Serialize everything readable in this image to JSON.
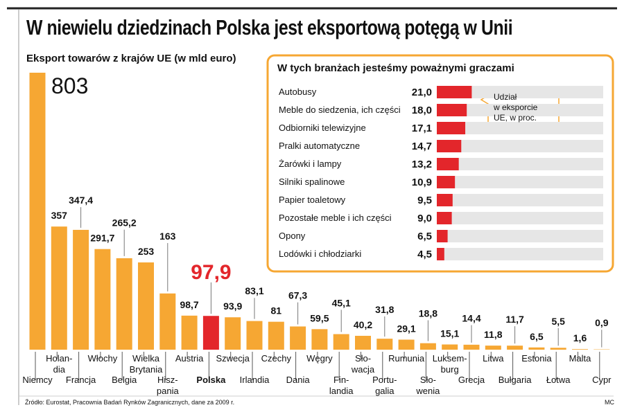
{
  "chart_data": [
    {
      "type": "bar",
      "title": "W niewielu dziedzinach Polska jest eksportową potęgą w Unii",
      "subtitle": "Eksport towarów z krajów UE (w mld euro)",
      "categories": [
        "Niemcy",
        "Holan-\ndia",
        "Francja",
        "Włochy",
        "Belgia",
        "Wielka\nBrytania",
        "Hisz-\npania",
        "Austria",
        "Polska",
        "Szwecja",
        "Irlandia",
        "Czechy",
        "Dania",
        "Węgry",
        "Fin-\nlandia",
        "Sło-\nwacja",
        "Portu-\ngalia",
        "Rumunia",
        "Sło-\nwenia",
        "Luksem-\nburg",
        "Grecja",
        "Litwa",
        "Bułgaria",
        "Estonia",
        "Łotwa",
        "Malta",
        "Cypr"
      ],
      "values": [
        803,
        357,
        347.4,
        291.7,
        265.2,
        253,
        163,
        98.7,
        97.9,
        93.9,
        83.1,
        81,
        67.3,
        59.5,
        45.1,
        40.2,
        31.8,
        29.1,
        18.8,
        15.1,
        14.4,
        11.8,
        11.7,
        6.5,
        5.5,
        1.6,
        0.9
      ],
      "value_labels": [
        "803",
        "357",
        "347,4",
        "291,7",
        "265,2",
        "253",
        "163",
        "98,7",
        "97,9",
        "93,9",
        "83,1",
        "81",
        "67,3",
        "59,5",
        "45,1",
        "40,2",
        "31,8",
        "29,1",
        "18,8",
        "15,1",
        "14,4",
        "11,8",
        "11,7",
        "6,5",
        "5,5",
        "1,6",
        "0,9"
      ],
      "colors": [
        "#f6a733",
        "#f6a733",
        "#f6a733",
        "#f6a733",
        "#f6a733",
        "#f6a733",
        "#f6a733",
        "#f6a733",
        "#e3262b",
        "#f6a733",
        "#f6a733",
        "#f6a733",
        "#f6a733",
        "#f6a733",
        "#f6a733",
        "#f6a733",
        "#f6a733",
        "#f6a733",
        "#f6a733",
        "#f6a733",
        "#f6a733",
        "#f6a733",
        "#f6a733",
        "#f6a733",
        "#f6a733",
        "#f6a733",
        "#f6a733"
      ],
      "source": "Źródło: Eurostat, Pracownia Badań Rynków Zagranicznych, dane za 2009 r.",
      "credit": "MC"
    },
    {
      "type": "hbar",
      "title": "W tych branżach jesteśmy poważnymi graczami",
      "categories": [
        "Autobusy",
        "Meble do siedzenia, ich części",
        "Odbiorniki telewizyjne",
        "Pralki automatyczne",
        "Żarówki i lampy",
        "Silniki spalinowe",
        "Papier toaletowy",
        "Pozostałe meble i ich części",
        "Opony",
        "Lodówki i chłodziarki"
      ],
      "values": [
        21.0,
        18.0,
        17.1,
        14.7,
        13.2,
        10.9,
        9.5,
        9.0,
        6.5,
        4.5
      ],
      "value_labels": [
        "21,0",
        "18,0",
        "17,1",
        "14,7",
        "13,2",
        "10,9",
        "9,5",
        "9,0",
        "6,5",
        "4,5"
      ],
      "color": "#e3262b",
      "track_color": "#e6e6e6",
      "xlim": [
        0,
        100
      ],
      "annotation": "Udział\nw eksporcie\nUE, w proc."
    }
  ]
}
